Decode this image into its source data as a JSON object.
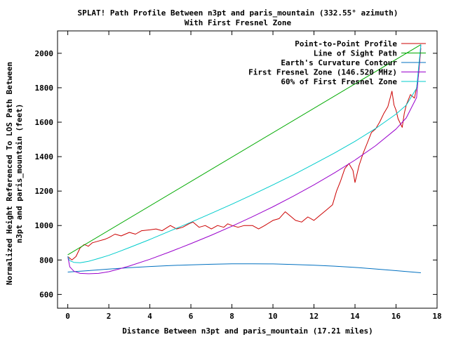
{
  "chart_data": {
    "type": "line",
    "title_line1": "SPLAT! Path Profile Between n3pt and paris_mountain (332.55° azimuth)",
    "title_line2": "With First Fresnel Zone",
    "xlabel": "Distance Between n3pt and paris_mountain (17.21 miles)",
    "ylabel_line1": "Normalized Height Referenced To LOS Path Between",
    "ylabel_line2": "n3pt and paris_mountain (feet)",
    "xlim": [
      -0.5,
      18
    ],
    "ylim": [
      520,
      2130
    ],
    "x_ticks": [
      0,
      2,
      4,
      6,
      8,
      10,
      12,
      14,
      16,
      18
    ],
    "y_ticks": [
      600,
      800,
      1000,
      1200,
      1400,
      1600,
      1800,
      2000
    ],
    "grid": false,
    "legend_position": "top-right",
    "series": [
      {
        "name": "Point-to-Point Profile",
        "color": "#cc0000",
        "x": [
          0,
          0.2,
          0.4,
          0.6,
          0.8,
          1.0,
          1.2,
          1.5,
          1.8,
          2.0,
          2.3,
          2.6,
          3.0,
          3.3,
          3.6,
          4.0,
          4.3,
          4.6,
          5.0,
          5.3,
          5.6,
          5.9,
          6.1,
          6.4,
          6.7,
          7.0,
          7.3,
          7.6,
          7.8,
          8.0,
          8.3,
          8.6,
          9.0,
          9.3,
          9.6,
          10.0,
          10.3,
          10.6,
          10.9,
          11.1,
          11.4,
          11.7,
          12.0,
          12.3,
          12.6,
          12.9,
          13.1,
          13.3,
          13.5,
          13.7,
          13.9,
          14.0,
          14.2,
          14.4,
          14.6,
          14.8,
          15.0,
          15.2,
          15.4,
          15.6,
          15.8,
          15.9,
          16.0,
          16.1,
          16.3,
          16.4,
          16.5,
          16.7,
          16.9,
          17.0,
          17.1,
          17.21
        ],
        "y": [
          820,
          800,
          820,
          870,
          890,
          880,
          900,
          910,
          920,
          930,
          950,
          940,
          960,
          950,
          970,
          975,
          980,
          970,
          1000,
          980,
          990,
          1010,
          1020,
          990,
          1000,
          980,
          1000,
          990,
          1010,
          1000,
          990,
          1000,
          1000,
          980,
          1000,
          1030,
          1040,
          1080,
          1050,
          1030,
          1020,
          1050,
          1030,
          1060,
          1090,
          1120,
          1200,
          1260,
          1330,
          1360,
          1320,
          1250,
          1350,
          1420,
          1480,
          1540,
          1560,
          1600,
          1650,
          1690,
          1780,
          1700,
          1670,
          1620,
          1570,
          1650,
          1700,
          1760,
          1740,
          1800,
          1880,
          2030
        ]
      },
      {
        "name": "Line of Sight Path",
        "color": "#00aa00",
        "x": [
          0,
          17.21
        ],
        "y": [
          830,
          2050
        ]
      },
      {
        "name": "Earth's Curvature Contour",
        "color": "#0070c0",
        "x": [
          0,
          1,
          2,
          3,
          4,
          5,
          6,
          7,
          8,
          9,
          10,
          11,
          12,
          13,
          14,
          15,
          16,
          17.21
        ],
        "y": [
          730,
          738,
          747,
          755,
          762,
          768,
          772,
          775,
          778,
          778,
          777,
          774,
          770,
          764,
          757,
          748,
          738,
          726
        ]
      },
      {
        "name": "First Fresnel Zone (146.520 MHz)",
        "color": "#9900cc",
        "x": [
          0,
          0.1,
          0.3,
          0.6,
          1,
          1.5,
          2,
          2.5,
          3,
          4,
          5,
          6,
          7,
          8,
          9,
          10,
          11,
          12,
          13,
          14,
          15,
          16,
          16.5,
          17,
          17.21
        ],
        "y": [
          820,
          760,
          735,
          722,
          720,
          722,
          732,
          748,
          765,
          804,
          848,
          895,
          944,
          996,
          1051,
          1109,
          1171,
          1236,
          1306,
          1380,
          1463,
          1560,
          1625,
          1743,
          2050
        ]
      },
      {
        "name": "60% of First Fresnel Zone",
        "color": "#00cccc",
        "x": [
          0,
          0.1,
          0.3,
          0.6,
          1,
          1.5,
          2,
          2.5,
          3,
          4,
          5,
          6,
          7,
          8,
          9,
          10,
          11,
          12,
          13,
          14,
          15,
          16,
          16.5,
          17,
          17.21
        ],
        "y": [
          820,
          796,
          786,
          784,
          792,
          809,
          827,
          849,
          872,
          919,
          969,
          1019,
          1071,
          1124,
          1179,
          1236,
          1295,
          1357,
          1421,
          1489,
          1563,
          1647,
          1699,
          1797,
          2050
        ]
      }
    ]
  }
}
